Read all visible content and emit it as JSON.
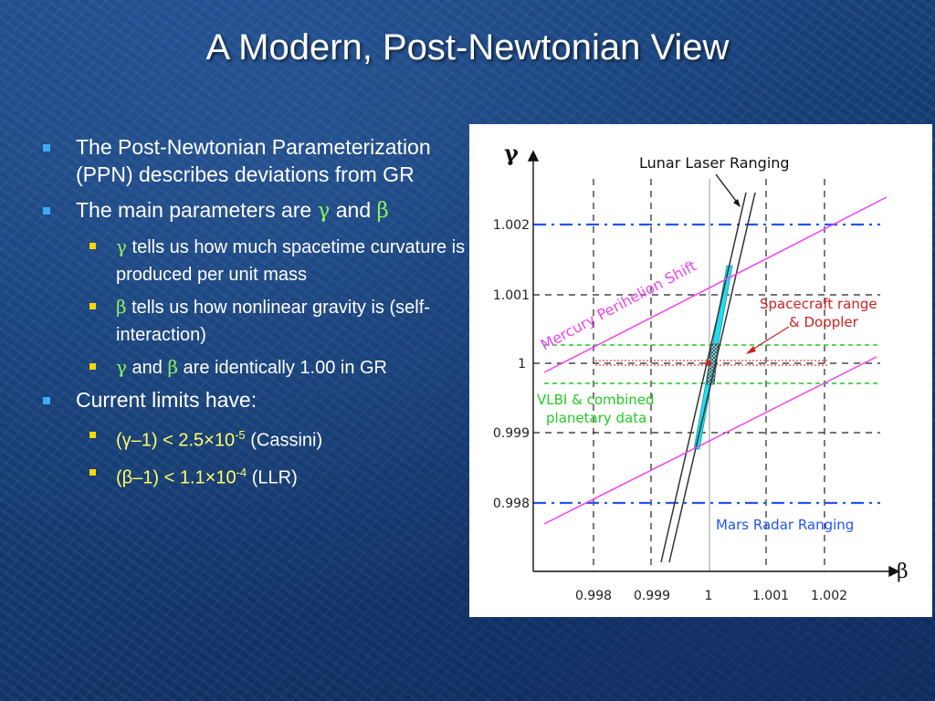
{
  "slide": {
    "title": "A Modern, Post-Newtonian View"
  },
  "bullets": {
    "b1": "The Post-Newtonian Parameterization (PPN) describes deviations from GR",
    "b2_text": "The main parameters are ",
    "b2_and": " and ",
    "gamma": "γ",
    "beta": "β",
    "s1_text": " tells us how much spacetime curvature is produced per unit mass",
    "s2_text": " tells us how nonlinear gravity is (self-interaction)",
    "s3_and": " and ",
    "s3_text": " are identically 1.00 in GR",
    "b3": "Current limits have:",
    "limit1_expr": "(γ–1) < 2.5×10",
    "limit1_exp": "-5",
    "limit1_src": " (Cassini)",
    "limit2_expr": "(β–1) < 1.1×10",
    "limit2_exp": "-4",
    "limit2_src": " (LLR)"
  },
  "colors": {
    "bullet_level1": "#3fa9f5",
    "bullet_level2": "#ffd700",
    "greek": "#8cf05f",
    "limits": "#ffff66"
  },
  "diagram": {
    "y_axis_label": "γ",
    "x_axis_label": "β",
    "y_ticks": [
      "1.002",
      "1.001",
      "1",
      "0.999",
      "0.998"
    ],
    "x_ticks": [
      "0.998",
      "0.999",
      "1",
      "1.001",
      "1.002"
    ],
    "labels": {
      "llr": "Lunar Laser Ranging",
      "mercury": "Mercury Perihelion Shift",
      "spacecraft_1": "Spacecraft range",
      "spacecraft_2": "& Doppler",
      "vlbi_1": "VLBI & combined",
      "vlbi_2": "planetary data",
      "mars": "Mars Radar Ranging"
    },
    "colors": {
      "mercury": "#ee44ee",
      "mars": "#2255ee",
      "vlbi": "#22cc22",
      "spacecraft": "#cc2222",
      "cyan_band": "#22ddee"
    }
  }
}
